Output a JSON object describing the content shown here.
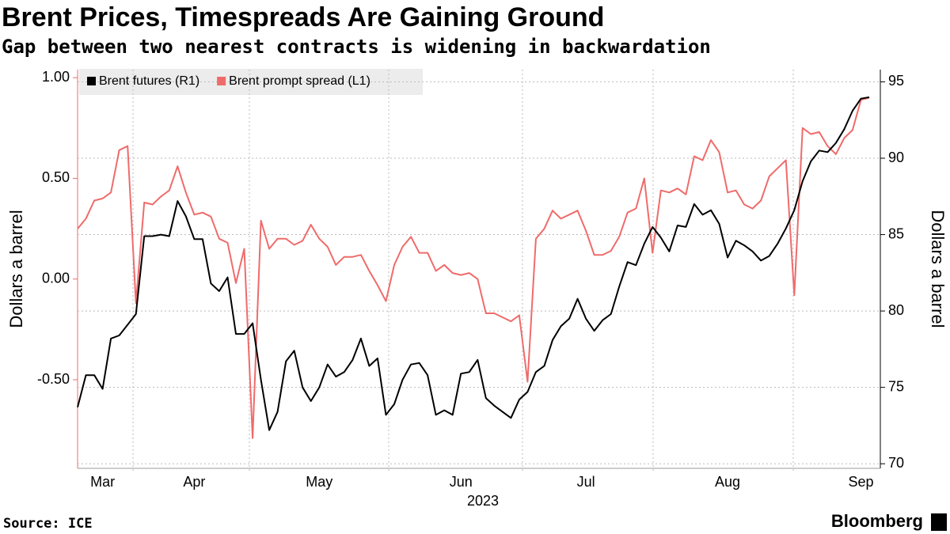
{
  "chart_data": {
    "type": "line",
    "title": "Brent Prices, Timespreads Are Gaining Ground",
    "subtitle": "Gap between two nearest contracts is widening in backwardation",
    "ylabel": "Dollars a barrel",
    "y2label": "Dollars a barrel",
    "xlabel": "2023",
    "source": "Source: ICE",
    "brand": "Bloomberg",
    "categories": [
      null,
      null,
      null,
      "Mar",
      null,
      null,
      null,
      null,
      null,
      null,
      null,
      null,
      null,
      null,
      "Apr",
      null,
      null,
      null,
      null,
      null,
      null,
      null,
      null,
      null,
      null,
      null,
      null,
      null,
      null,
      "May",
      null,
      null,
      null,
      null,
      null,
      null,
      null,
      null,
      null,
      null,
      null,
      null,
      null,
      null,
      null,
      null,
      "Jun",
      null,
      null,
      null,
      null,
      null,
      null,
      null,
      null,
      null,
      null,
      null,
      null,
      null,
      null,
      "Jul",
      null,
      null,
      null,
      null,
      null,
      null,
      null,
      null,
      null,
      null,
      null,
      null,
      null,
      null,
      null,
      null,
      "Aug",
      null,
      null,
      null,
      null,
      null,
      null,
      null,
      null,
      null,
      null,
      null,
      null,
      null,
      null,
      null,
      "Sep",
      null
    ],
    "series": [
      {
        "name": "Brent futures (R1)",
        "color": "#000000",
        "axis": "y2",
        "values": [
          73.7,
          75.8,
          75.8,
          74.9,
          78.2,
          78.4,
          79.1,
          79.8,
          84.9,
          84.9,
          85.0,
          84.9,
          87.2,
          86.2,
          84.7,
          84.7,
          81.8,
          81.3,
          82.2,
          78.5,
          78.5,
          79.2,
          75.5,
          72.2,
          73.4,
          76.7,
          77.4,
          75.0,
          74.1,
          75.0,
          76.5,
          75.7,
          76.0,
          76.8,
          78.2,
          76.4,
          76.9,
          73.2,
          73.9,
          75.5,
          76.5,
          76.6,
          75.8,
          73.2,
          73.5,
          73.2,
          75.9,
          76.0,
          76.8,
          74.3,
          73.8,
          73.4,
          73.0,
          74.2,
          74.7,
          76.0,
          76.4,
          78.1,
          79.0,
          79.5,
          80.8,
          79.5,
          78.7,
          79.4,
          79.8,
          81.6,
          83.2,
          83.0,
          84.4,
          85.5,
          84.8,
          83.9,
          85.6,
          85.5,
          87.0,
          86.3,
          86.6,
          85.7,
          83.5,
          84.6,
          84.3,
          83.9,
          83.3,
          83.6,
          84.4,
          85.4,
          86.6,
          88.5,
          89.8,
          90.5,
          90.4,
          91.0,
          91.9,
          93.1,
          93.9,
          94.0
        ]
      },
      {
        "name": "Brent prompt spread (L1)",
        "color": "#ef6b6b",
        "axis": "y",
        "values": [
          0.25,
          0.3,
          0.39,
          0.4,
          0.43,
          0.64,
          0.66,
          -0.12,
          0.38,
          0.37,
          0.41,
          0.44,
          0.56,
          0.43,
          0.32,
          0.33,
          0.31,
          0.2,
          0.18,
          -0.02,
          0.15,
          -0.79,
          0.29,
          0.15,
          0.2,
          0.2,
          0.17,
          0.19,
          0.27,
          0.2,
          0.16,
          0.07,
          0.11,
          0.11,
          0.12,
          0.04,
          -0.03,
          -0.11,
          0.07,
          0.16,
          0.21,
          0.13,
          0.13,
          0.04,
          0.07,
          0.03,
          0.02,
          0.03,
          0.0,
          -0.17,
          -0.17,
          -0.19,
          -0.21,
          -0.18,
          -0.51,
          0.2,
          0.25,
          0.34,
          0.3,
          0.32,
          0.34,
          0.24,
          0.12,
          0.12,
          0.14,
          0.21,
          0.33,
          0.35,
          0.5,
          0.13,
          0.44,
          0.43,
          0.45,
          0.42,
          0.61,
          0.59,
          0.69,
          0.63,
          0.43,
          0.44,
          0.37,
          0.35,
          0.39,
          0.51,
          0.55,
          0.59,
          -0.08,
          0.75,
          0.72,
          0.73,
          0.66,
          0.62,
          0.7,
          0.74,
          0.89,
          0.9
        ]
      }
    ],
    "ylim": [
      -0.94,
      1.04
    ],
    "yticks": [
      {
        "value": 1,
        "label": "1.00"
      },
      {
        "value": 0.5,
        "label": "0.50"
      },
      {
        "value": 0,
        "label": "0.00"
      },
      {
        "value": -0.5,
        "label": "-0.50"
      }
    ],
    "y2lim": [
      69.7,
      95.8
    ],
    "y2ticks": [
      95,
      90,
      85,
      80,
      75,
      70
    ],
    "grid": true,
    "legend": "top-left"
  }
}
